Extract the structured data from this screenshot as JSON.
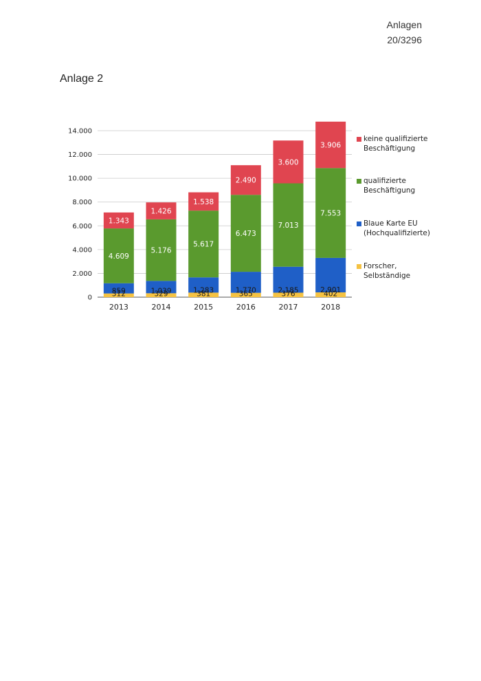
{
  "header": {
    "line1": "Anlagen",
    "line2": "20/3296"
  },
  "page_label": "Anlage 2",
  "colors": {
    "forscher": "#f5c242",
    "blaue_karte": "#1f5fc7",
    "qualifiziert": "#5a9a2e",
    "keine": "#e04550"
  },
  "chart_data": {
    "type": "bar",
    "stacked": true,
    "title": "",
    "xlabel": "",
    "ylabel": "",
    "ylim": [
      0,
      14000
    ],
    "yticks": [
      0,
      2000,
      4000,
      6000,
      8000,
      10000,
      12000,
      14000
    ],
    "ytick_labels": [
      "0",
      "2.000",
      "4.000",
      "6.000",
      "8.000",
      "10.000",
      "12.000",
      "14.000"
    ],
    "grid": true,
    "legend_position": "right",
    "categories": [
      "2013",
      "2014",
      "2015",
      "2016",
      "2017",
      "2018"
    ],
    "series": [
      {
        "key": "forscher",
        "name_lines": [
          "Forscher,",
          "Selbständige"
        ],
        "values": [
          312,
          329,
          381,
          365,
          376,
          402
        ],
        "labels": [
          "312",
          "329",
          "381",
          "365",
          "376",
          "402"
        ]
      },
      {
        "key": "blaue_karte",
        "name_lines": [
          "Blaue Karte EU",
          "(Hochqualifizierte)"
        ],
        "values": [
          859,
          1039,
          1283,
          1770,
          2185,
          2901
        ],
        "labels": [
          "859",
          "1.039",
          "1.283",
          "1.770",
          "2.185",
          "2.901"
        ]
      },
      {
        "key": "qualifiziert",
        "name_lines": [
          "qualifizierte",
          "Beschäftigung"
        ],
        "values": [
          4609,
          5176,
          5617,
          6473,
          7013,
          7553
        ],
        "labels": [
          "4.609",
          "5.176",
          "5.617",
          "6.473",
          "7.013",
          "7.553"
        ]
      },
      {
        "key": "keine",
        "name_lines": [
          "keine qualifizierte",
          "Beschäftigung"
        ],
        "values": [
          1343,
          1426,
          1538,
          2490,
          3600,
          3906
        ],
        "labels": [
          "1.343",
          "1.426",
          "1.538",
          "2.490",
          "3.600",
          "3.906"
        ]
      }
    ]
  }
}
